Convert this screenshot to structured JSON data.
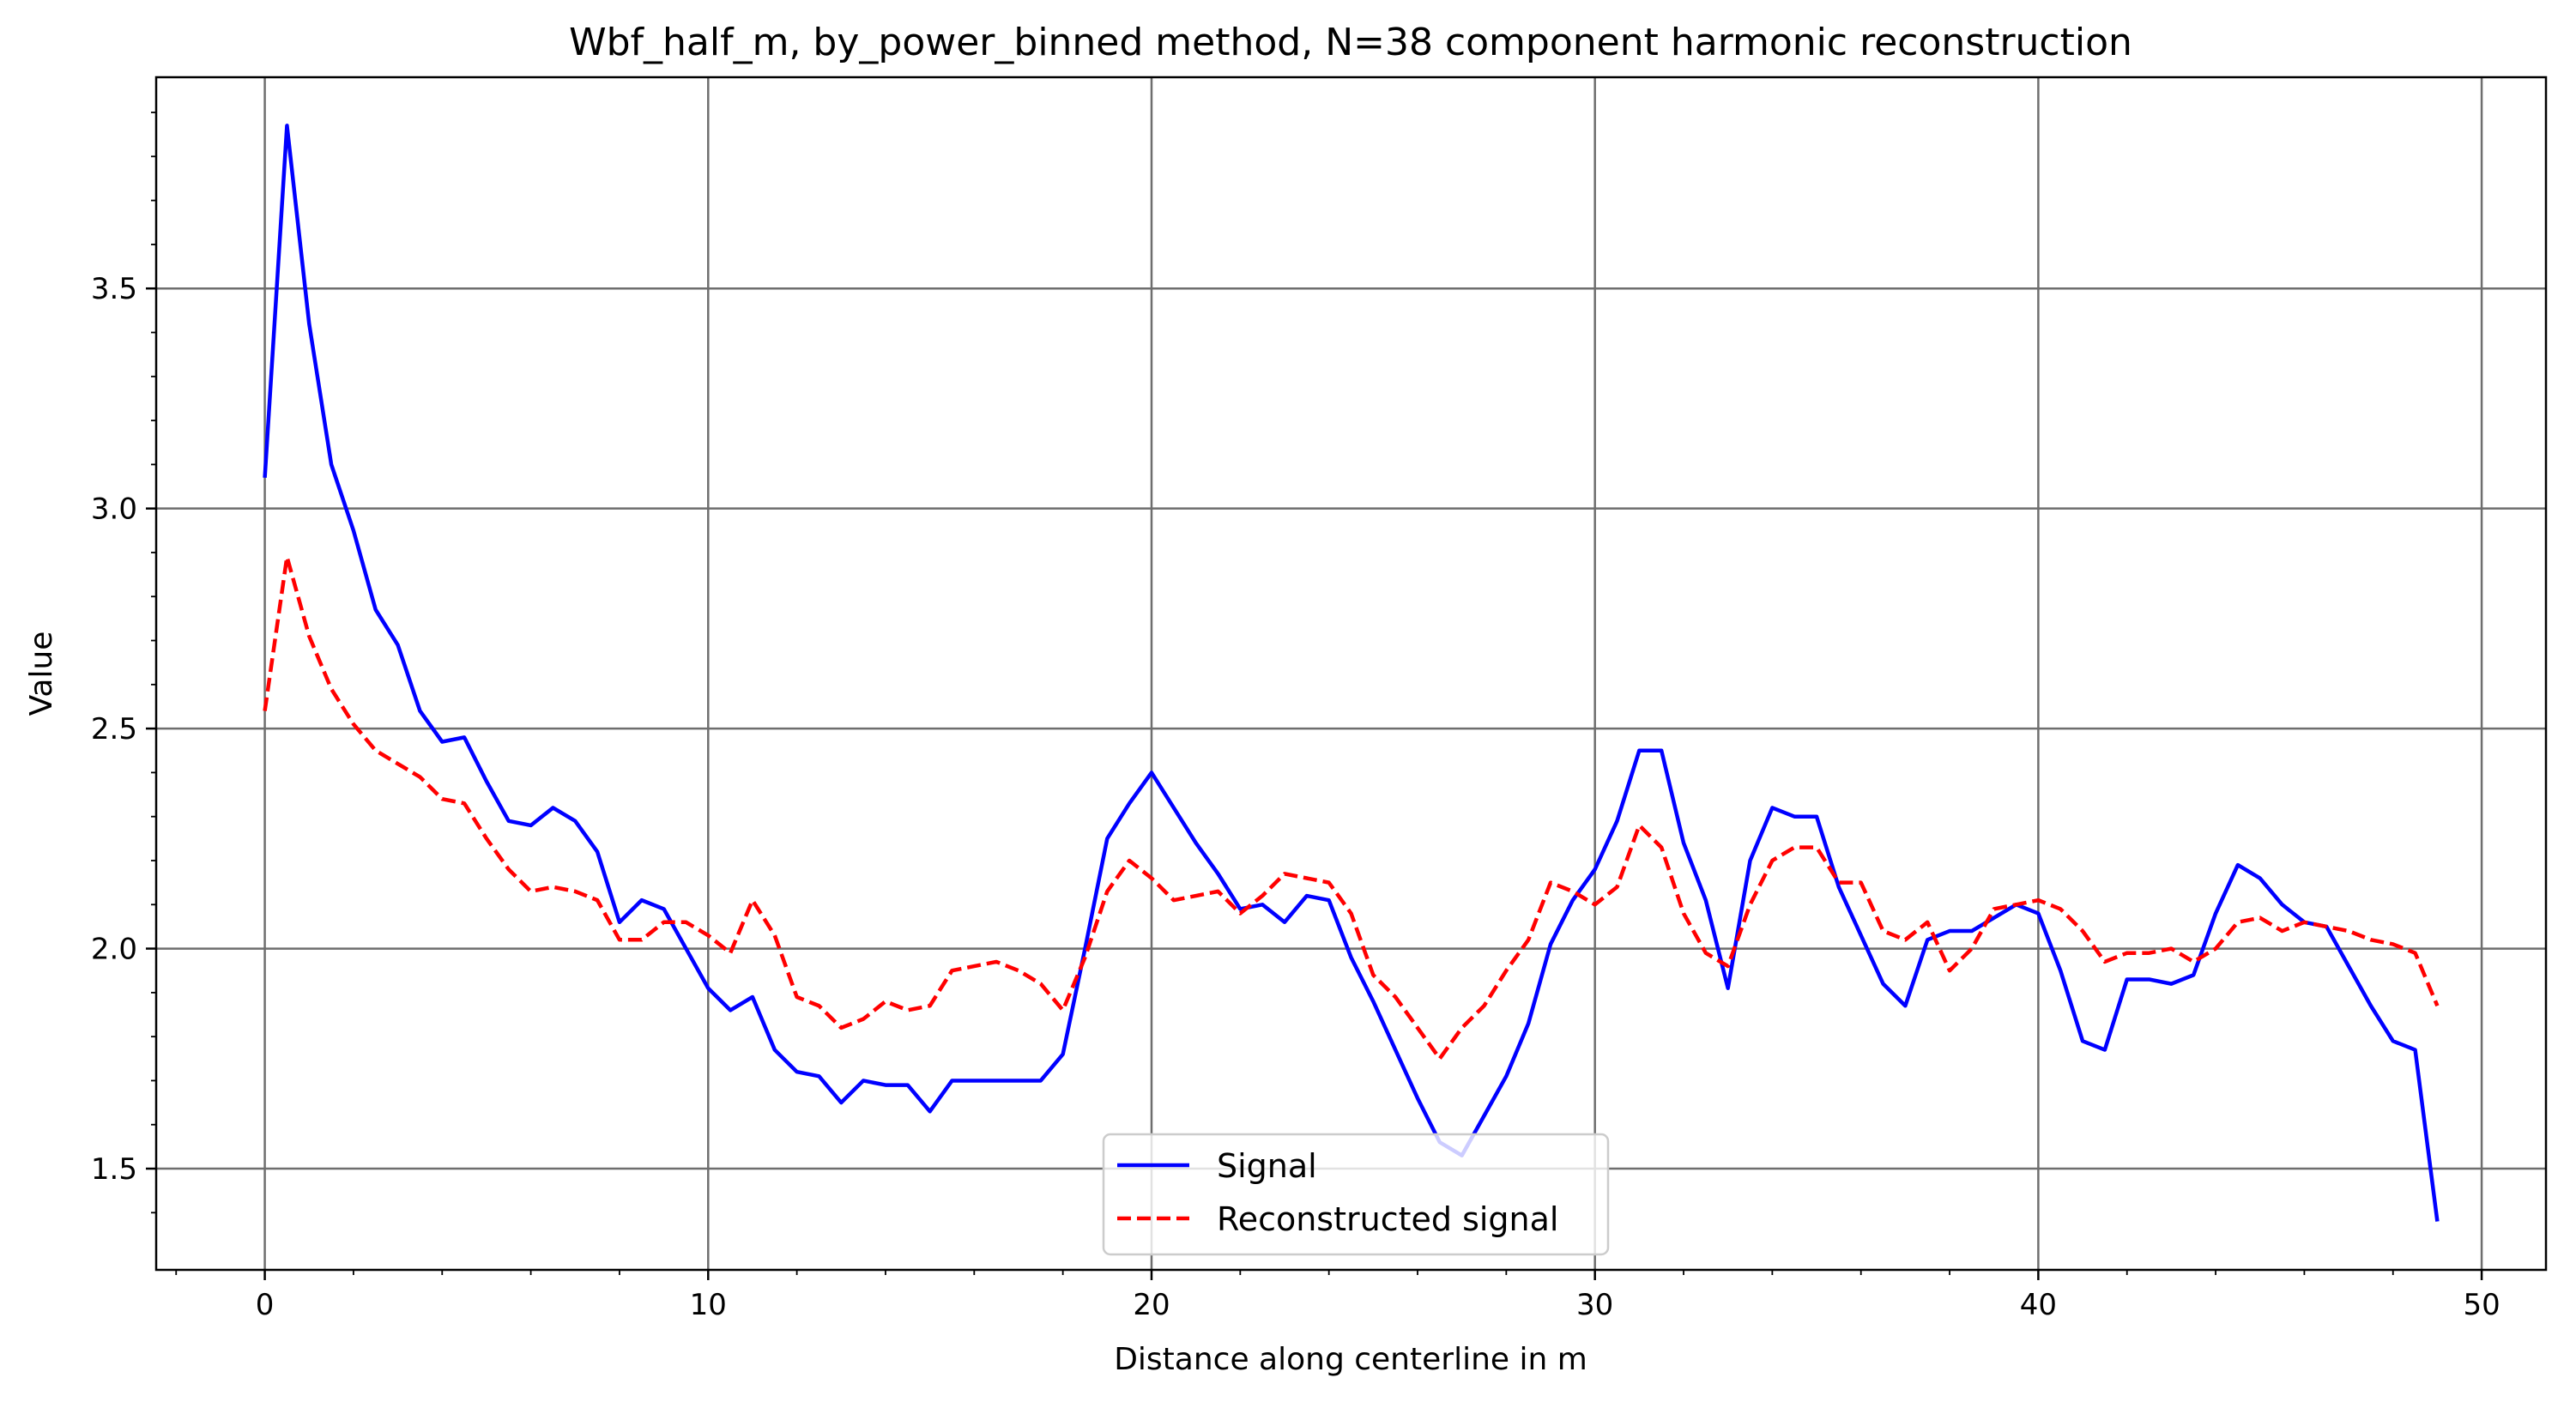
{
  "chart_data": {
    "type": "line",
    "title": "Wbf_half_m, by_power_binned method, N=38 component harmonic reconstruction",
    "xlabel": "Distance along centerline in m",
    "ylabel": "Value",
    "xlim": [
      -2.45,
      51.45
    ],
    "ylim": [
      1.27,
      3.98
    ],
    "xticks": [
      0,
      10,
      20,
      30,
      40,
      50
    ],
    "yticks": [
      1.5,
      2.0,
      2.5,
      3.0,
      3.5
    ],
    "xtick_labels": [
      "0",
      "10",
      "20",
      "30",
      "40",
      "50"
    ],
    "ytick_labels": [
      "1.5",
      "2.0",
      "2.5",
      "3.0",
      "3.5"
    ],
    "grid": true,
    "legend_position": "lower center",
    "colors": {
      "signal": "#0000ff",
      "reconstructed": "#ff0000",
      "grid": "#6e6e6e"
    },
    "x": [
      0.0,
      0.5,
      1.0,
      1.5,
      2.0,
      2.5,
      3.0,
      3.5,
      4.0,
      4.5,
      5.0,
      5.5,
      6.0,
      6.5,
      7.0,
      7.5,
      8.0,
      8.5,
      9.0,
      9.5,
      10.0,
      10.5,
      11.0,
      11.5,
      12.0,
      12.5,
      13.0,
      13.5,
      14.0,
      14.5,
      15.0,
      15.5,
      16.0,
      16.5,
      17.0,
      17.5,
      18.0,
      18.5,
      19.0,
      19.5,
      20.0,
      20.5,
      21.0,
      21.5,
      22.0,
      22.5,
      23.0,
      23.5,
      24.0,
      24.5,
      25.0,
      25.5,
      26.0,
      26.5,
      27.0,
      27.5,
      28.0,
      28.5,
      29.0,
      29.5,
      30.0,
      30.5,
      31.0,
      31.5,
      32.0,
      32.5,
      33.0,
      33.5,
      34.0,
      34.5,
      35.0,
      35.5,
      36.0,
      36.5,
      37.0,
      37.5,
      38.0,
      38.5,
      39.0,
      39.5,
      40.0,
      40.5,
      41.0,
      41.5,
      42.0,
      42.5,
      43.0,
      43.5,
      44.0,
      44.5,
      45.0,
      45.5,
      46.0,
      46.5,
      47.0,
      47.5,
      48.0,
      48.5,
      49.0
    ],
    "series": [
      {
        "name": "Signal",
        "style": "solid",
        "color": "#0000ff",
        "values": [
          3.07,
          3.87,
          3.42,
          3.1,
          2.95,
          2.77,
          2.69,
          2.54,
          2.47,
          2.48,
          2.38,
          2.29,
          2.28,
          2.32,
          2.29,
          2.22,
          2.06,
          2.11,
          2.09,
          2.0,
          1.91,
          1.86,
          1.89,
          1.77,
          1.72,
          1.71,
          1.65,
          1.7,
          1.69,
          1.69,
          1.63,
          1.7,
          1.7,
          1.7,
          1.7,
          1.7,
          1.76,
          2.0,
          2.25,
          2.33,
          2.4,
          2.32,
          2.24,
          2.17,
          2.09,
          2.1,
          2.06,
          2.12,
          2.11,
          1.98,
          1.88,
          1.77,
          1.66,
          1.56,
          1.53,
          1.62,
          1.71,
          1.83,
          2.01,
          2.11,
          2.18,
          2.29,
          2.45,
          2.45,
          2.24,
          2.11,
          1.91,
          2.2,
          2.32,
          2.3,
          2.3,
          2.14,
          2.03,
          1.92,
          1.87,
          2.02,
          2.04,
          2.04,
          2.07,
          2.1,
          2.08,
          1.95,
          1.79,
          1.77,
          1.93,
          1.93,
          1.92,
          1.94,
          2.08,
          2.19,
          2.16,
          2.1,
          2.06,
          2.05,
          1.96,
          1.87,
          1.79,
          1.77,
          1.38
        ]
      },
      {
        "name": "Reconstructed signal",
        "style": "dashed",
        "color": "#ff0000",
        "values": [
          2.54,
          2.89,
          2.71,
          2.59,
          2.51,
          2.45,
          2.42,
          2.39,
          2.34,
          2.33,
          2.25,
          2.18,
          2.13,
          2.14,
          2.13,
          2.11,
          2.02,
          2.02,
          2.06,
          2.06,
          2.03,
          1.99,
          2.11,
          2.03,
          1.89,
          1.87,
          1.82,
          1.84,
          1.88,
          1.86,
          1.87,
          1.95,
          1.96,
          1.97,
          1.95,
          1.92,
          1.86,
          1.98,
          2.13,
          2.2,
          2.16,
          2.11,
          2.12,
          2.13,
          2.08,
          2.12,
          2.17,
          2.16,
          2.15,
          2.08,
          1.94,
          1.89,
          1.82,
          1.75,
          1.82,
          1.87,
          1.95,
          2.02,
          2.15,
          2.13,
          2.1,
          2.14,
          2.28,
          2.23,
          2.08,
          1.99,
          1.96,
          2.1,
          2.2,
          2.23,
          2.23,
          2.15,
          2.15,
          2.04,
          2.02,
          2.06,
          1.95,
          2.0,
          2.09,
          2.1,
          2.11,
          2.09,
          2.04,
          1.97,
          1.99,
          1.99,
          2.0,
          1.97,
          2.0,
          2.06,
          2.07,
          2.04,
          2.06,
          2.05,
          2.04,
          2.02,
          2.01,
          1.99,
          1.87
        ]
      }
    ]
  }
}
